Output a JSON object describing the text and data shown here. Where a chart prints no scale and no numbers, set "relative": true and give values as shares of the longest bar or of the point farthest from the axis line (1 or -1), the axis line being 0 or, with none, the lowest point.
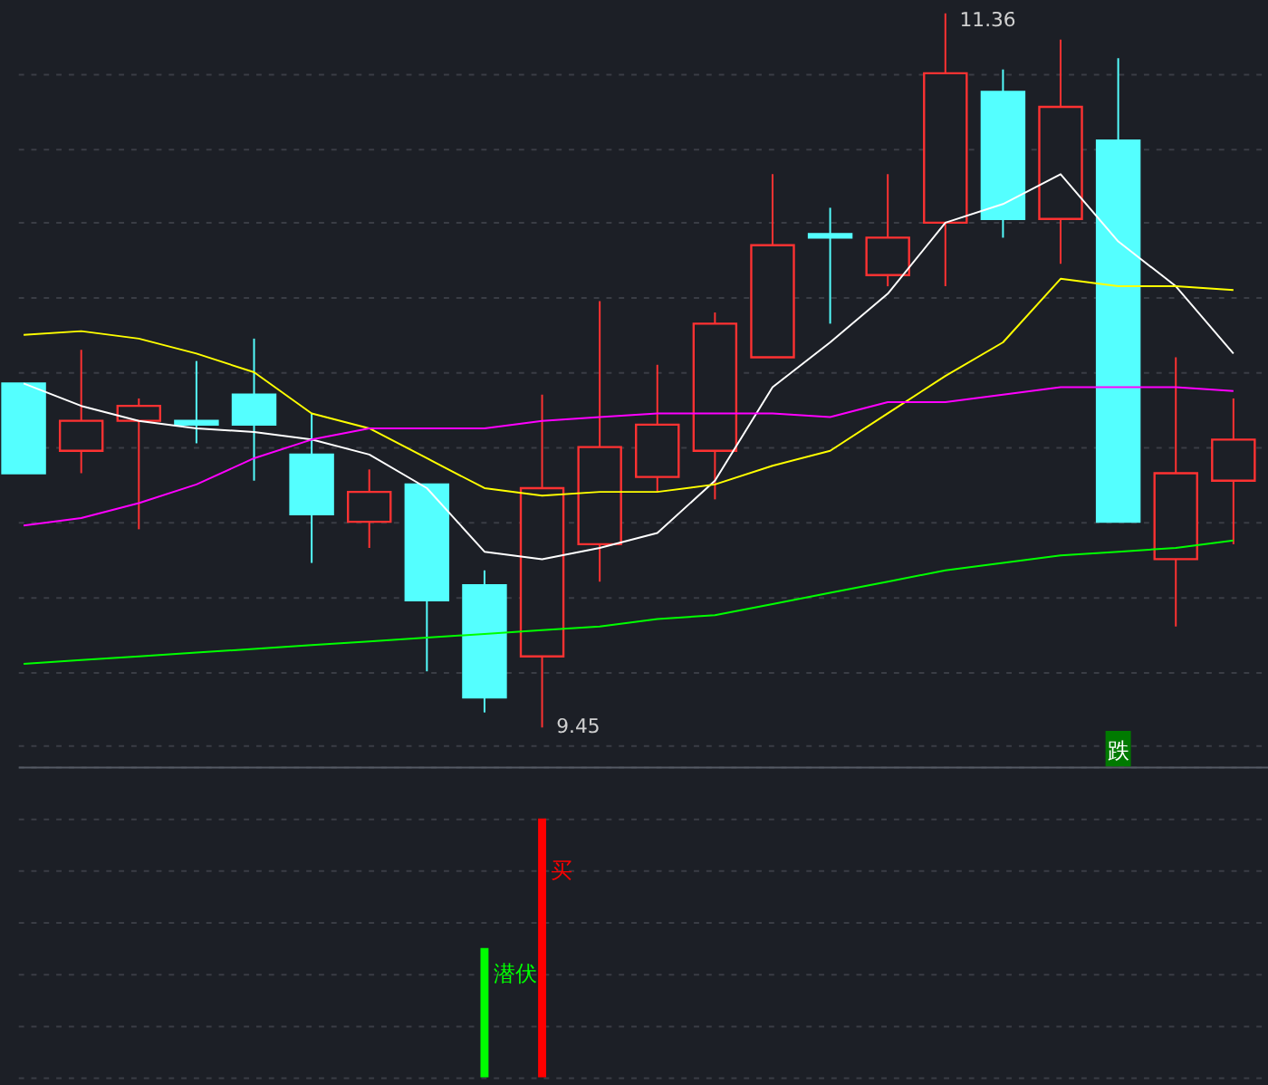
{
  "chart_data": [
    {
      "type": "candlestick",
      "categories": [
        null,
        null,
        null,
        null,
        null,
        null,
        null,
        null,
        null,
        null,
        null,
        null,
        null,
        null,
        null,
        null,
        null,
        null,
        null,
        null,
        null,
        null
      ],
      "ohlc": [
        [
          10.37,
          10.37,
          10.13,
          10.13
        ],
        [
          10.19,
          10.46,
          10.13,
          10.27
        ],
        [
          10.27,
          10.33,
          9.98,
          10.31
        ],
        [
          10.27,
          10.43,
          10.21,
          10.26
        ],
        [
          10.34,
          10.49,
          10.11,
          10.26
        ],
        [
          10.18,
          10.29,
          9.89,
          10.02
        ],
        [
          10.0,
          10.14,
          9.93,
          10.08
        ],
        [
          10.1,
          10.1,
          9.6,
          9.79
        ],
        [
          9.83,
          9.87,
          9.49,
          9.53
        ],
        [
          9.64,
          10.34,
          9.45,
          10.09
        ],
        [
          9.94,
          10.59,
          9.84,
          10.2
        ],
        [
          10.12,
          10.42,
          10.08,
          10.26
        ],
        [
          10.19,
          10.56,
          10.06,
          10.53
        ],
        [
          10.44,
          10.93,
          10.44,
          10.74
        ],
        [
          10.77,
          10.84,
          10.53,
          10.76
        ],
        [
          10.66,
          10.93,
          10.63,
          10.76
        ],
        [
          10.8,
          11.36,
          10.63,
          11.2
        ],
        [
          11.15,
          11.21,
          10.76,
          10.81
        ],
        [
          10.81,
          11.29,
          10.69,
          11.11
        ],
        [
          11.02,
          11.24,
          10.0,
          10.0
        ],
        [
          9.9,
          10.44,
          9.72,
          10.13
        ],
        [
          10.11,
          10.33,
          9.94,
          10.22
        ]
      ],
      "colors": [
        "#54ffff",
        "#ff3232",
        "#ff3232",
        "#54ffff",
        "#54ffff",
        "#54ffff",
        "#ff3232",
        "#54ffff",
        "#54ffff",
        "#ff3232",
        "#ff3232",
        "#ff3232",
        "#ff3232",
        "#ff3232",
        "#54ffff",
        "#ff3232",
        "#ff3232",
        "#54ffff",
        "#ff3232",
        "#54ffff",
        "#ff3232",
        "#ff3232"
      ],
      "series": [
        {
          "type": "line",
          "color": "#ffffff",
          "values": [
            10.37,
            10.31,
            10.27,
            10.25,
            10.24,
            10.22,
            10.18,
            10.09,
            9.92,
            9.9,
            9.93,
            9.97,
            10.11,
            10.36,
            10.48,
            10.61,
            10.8,
            10.85,
            10.93,
            10.75,
            10.63,
            10.45
          ]
        },
        {
          "type": "line",
          "color": "#ffff00",
          "values": [
            10.5,
            10.51,
            10.49,
            10.45,
            10.4,
            10.29,
            10.25,
            10.17,
            10.09,
            10.07,
            10.08,
            10.08,
            10.1,
            10.15,
            10.19,
            10.29,
            10.39,
            10.48,
            10.65,
            10.63,
            10.63,
            10.62
          ]
        },
        {
          "type": "line",
          "color": "#ff00ff",
          "values": [
            9.99,
            10.01,
            10.05,
            10.1,
            10.17,
            10.22,
            10.25,
            10.25,
            10.25,
            10.27,
            10.28,
            10.29,
            10.29,
            10.29,
            10.28,
            10.32,
            10.32,
            10.34,
            10.36,
            10.36,
            10.36,
            10.35
          ]
        },
        {
          "type": "line",
          "color": "#00ff00",
          "values": [
            9.62,
            9.63,
            9.64,
            9.65,
            9.66,
            9.67,
            9.68,
            9.69,
            9.7,
            9.71,
            9.72,
            9.74,
            9.75,
            9.78,
            9.81,
            9.84,
            9.87,
            9.89,
            9.91,
            9.92,
            9.93,
            9.95
          ]
        }
      ],
      "annotations": [
        "11.36",
        "9.45",
        "跌"
      ],
      "grid": "y"
    },
    {
      "type": "bar",
      "relative": true,
      "categories": [
        null,
        null,
        null,
        null,
        null,
        null,
        null,
        null,
        null,
        null,
        null,
        null,
        null,
        null,
        null,
        null,
        null,
        null,
        null,
        null,
        null,
        null
      ],
      "values": [
        null,
        null,
        null,
        null,
        null,
        null,
        null,
        null,
        0.5,
        1,
        null,
        null,
        null,
        null,
        null,
        null,
        null,
        null,
        null,
        null,
        null,
        null
      ],
      "colors": [
        "#00ff00",
        "#00ff00",
        "#00ff00",
        "#00ff00",
        "#00ff00",
        "#00ff00",
        "#00ff00",
        "#00ff00",
        "#00ff00",
        "#ff0000",
        "#ff0000",
        "#ff0000",
        "#ff0000",
        "#ff0000",
        "#ff0000",
        "#ff0000",
        "#ff0000",
        "#ff0000",
        "#ff0000",
        "#ff0000",
        "#ff0000",
        "#ff0000"
      ],
      "annotations": [
        "潜伏",
        "买"
      ],
      "grid": "y"
    }
  ]
}
